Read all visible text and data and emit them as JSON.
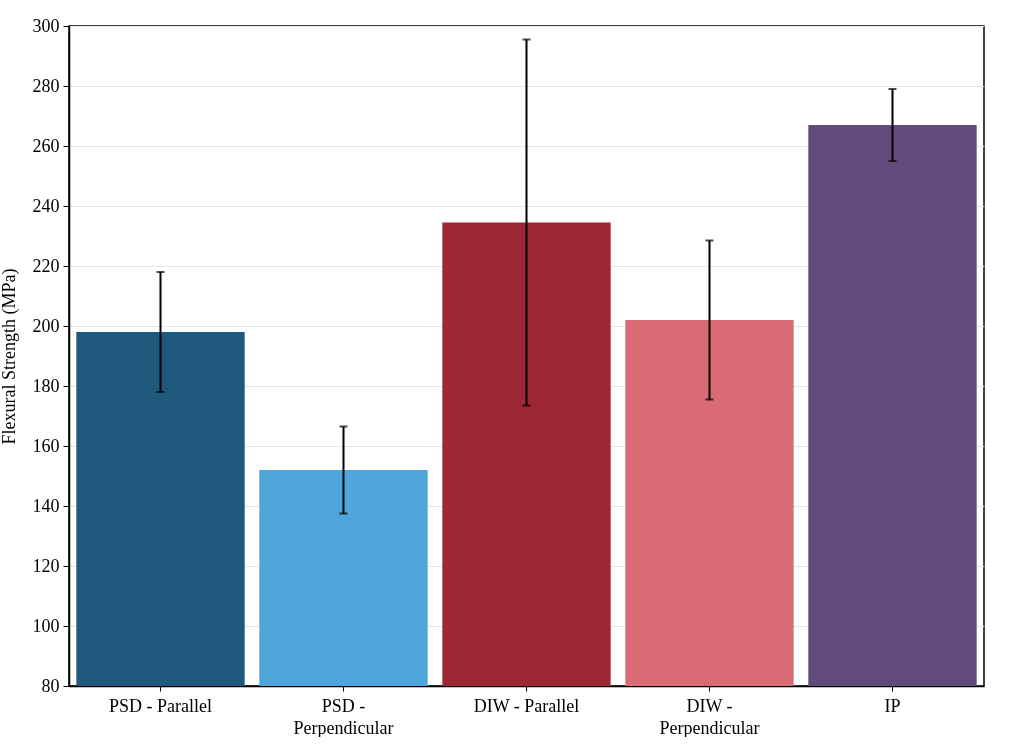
{
  "chart_data": {
    "type": "bar",
    "ylabel": "Flexural Strength (MPa)",
    "categories": [
      "PSD - Parallel",
      "PSD - Perpendicular",
      "DIW - Parallel",
      "DIW - Perpendicular",
      "IP"
    ],
    "values": [
      198,
      152,
      234.5,
      202,
      267
    ],
    "colors": [
      "#1f5a7e",
      "#4fa6da",
      "#9e2735",
      "#d86b74",
      "#624a7a"
    ],
    "errors": [
      20,
      14.5,
      61,
      26.5,
      12
    ],
    "ylim": [
      80,
      300
    ],
    "yticks": [
      80,
      100,
      120,
      140,
      160,
      180,
      200,
      220,
      240,
      260,
      280,
      300
    ],
    "grid": "y"
  }
}
